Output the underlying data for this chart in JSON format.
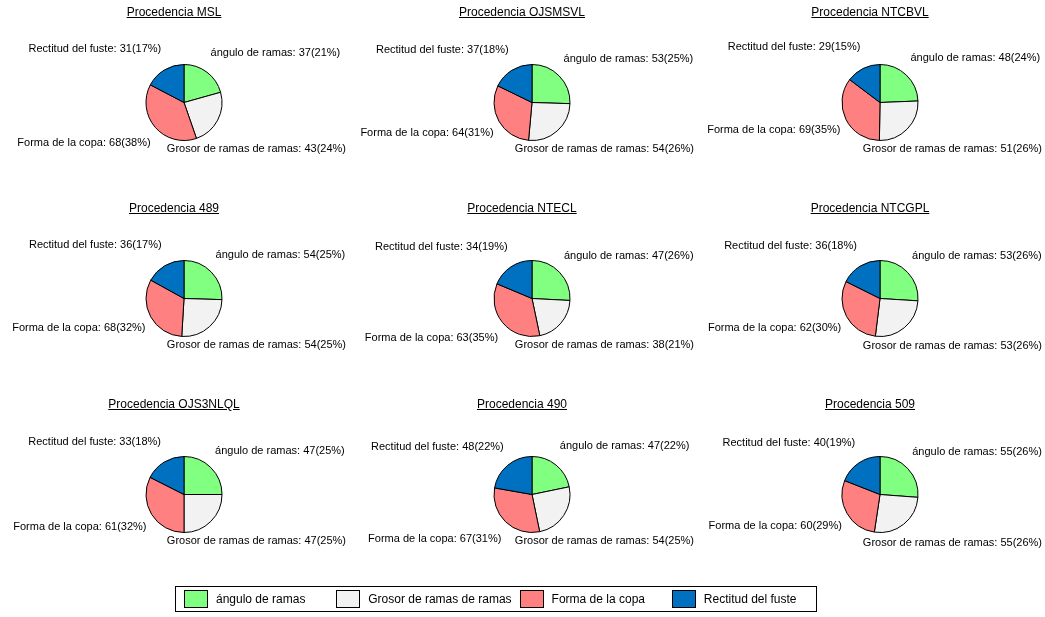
{
  "chart_data": [
    {
      "type": "pie",
      "title": "Procedencia MSL",
      "categories": [
        "ángulo de ramas",
        "Grosor de ramas de ramas",
        "Forma de la copa",
        "Rectitud del fuste"
      ],
      "values": [
        37,
        43,
        68,
        31
      ],
      "colors": [
        "#80ff80",
        "#f2f2f2",
        "#ff8080",
        "#0070c0"
      ],
      "value_labels": [
        ": 37(21%)",
        ": 43(24%)",
        ": 68(38%)",
        ": 31(17%)"
      ],
      "legend": "bottom"
    },
    {
      "type": "pie",
      "title": "Procedencia OJSMSVL",
      "categories": [
        "ángulo de ramas",
        "Grosor de ramas de ramas",
        "Forma de la copa",
        "Rectitud del fuste"
      ],
      "values": [
        53,
        54,
        64,
        37
      ],
      "colors": [
        "#80ff80",
        "#f2f2f2",
        "#ff8080",
        "#0070c0"
      ],
      "value_labels": [
        ": 53(25%)",
        ": 54(26%)",
        ": 64(31%)",
        ": 37(18%)"
      ]
    },
    {
      "type": "pie",
      "title": "Procedencia NTCBVL",
      "categories": [
        "ángulo de ramas",
        "Grosor de ramas de ramas",
        "Forma de la copa",
        "Rectitud del fuste"
      ],
      "values": [
        48,
        51,
        69,
        29
      ],
      "colors": [
        "#80ff80",
        "#f2f2f2",
        "#ff8080",
        "#0070c0"
      ],
      "value_labels": [
        ": 48(24%)",
        ": 51(26%)",
        ": 69(35%)",
        ": 29(15%)"
      ]
    },
    {
      "type": "pie",
      "title": "Procedencia 489",
      "categories": [
        "ángulo de ramas",
        "Grosor de ramas de ramas",
        "Forma de la copa",
        "Rectitud del fuste"
      ],
      "values": [
        54,
        54,
        68,
        36
      ],
      "colors": [
        "#80ff80",
        "#f2f2f2",
        "#ff8080",
        "#0070c0"
      ],
      "value_labels": [
        ": 54(25%)",
        ": 54(25%)",
        ": 68(32%)",
        ": 36(17%)"
      ]
    },
    {
      "type": "pie",
      "title": "Procedencia NTECL",
      "categories": [
        "ángulo de ramas",
        "Grosor de ramas de ramas",
        "Forma de la copa",
        "Rectitud del fuste"
      ],
      "values": [
        47,
        38,
        63,
        34
      ],
      "colors": [
        "#80ff80",
        "#f2f2f2",
        "#ff8080",
        "#0070c0"
      ],
      "value_labels": [
        ": 47(26%)",
        ": 38(21%)",
        ": 63(35%)",
        ": 34(19%)"
      ]
    },
    {
      "type": "pie",
      "title": "Procedencia NTCGPL",
      "categories": [
        "ángulo de ramas",
        "Grosor de ramas de ramas",
        "Forma de la copa",
        "Rectitud del fuste"
      ],
      "values": [
        53,
        53,
        62,
        36
      ],
      "colors": [
        "#80ff80",
        "#f2f2f2",
        "#ff8080",
        "#0070c0"
      ],
      "value_labels": [
        ": 53(26%)",
        ": 53(26%)",
        ": 62(30%)",
        ": 36(18%)"
      ]
    },
    {
      "type": "pie",
      "title": "Procedencia OJS3NLQL",
      "categories": [
        "ángulo de ramas",
        "Grosor de ramas de ramas",
        "Forma de la copa",
        "Rectitud del fuste"
      ],
      "values": [
        47,
        47,
        61,
        33
      ],
      "colors": [
        "#80ff80",
        "#f2f2f2",
        "#ff8080",
        "#0070c0"
      ],
      "value_labels": [
        ": 47(25%)",
        ": 47(25%)",
        ": 61(32%)",
        ": 33(18%)"
      ]
    },
    {
      "type": "pie",
      "title": "Procedencia 490",
      "categories": [
        "ángulo de ramas",
        "Grosor de ramas de ramas",
        "Forma de la copa",
        "Rectitud del fuste"
      ],
      "values": [
        47,
        54,
        67,
        48
      ],
      "colors": [
        "#80ff80",
        "#f2f2f2",
        "#ff8080",
        "#0070c0"
      ],
      "value_labels": [
        ": 47(22%)",
        ": 54(25%)",
        ": 67(31%)",
        ": 48(22%)"
      ]
    },
    {
      "type": "pie",
      "title": "Procedencia 509",
      "categories": [
        "ángulo de ramas",
        "Grosor de ramas de ramas",
        "Forma de la copa",
        "Rectitud del fuste"
      ],
      "values": [
        55,
        55,
        60,
        40
      ],
      "colors": [
        "#80ff80",
        "#f2f2f2",
        "#ff8080",
        "#0070c0"
      ],
      "value_labels": [
        ": 55(26%)",
        ": 55(26%)",
        ": 60(29%)",
        ": 40(19%)"
      ]
    }
  ]
}
